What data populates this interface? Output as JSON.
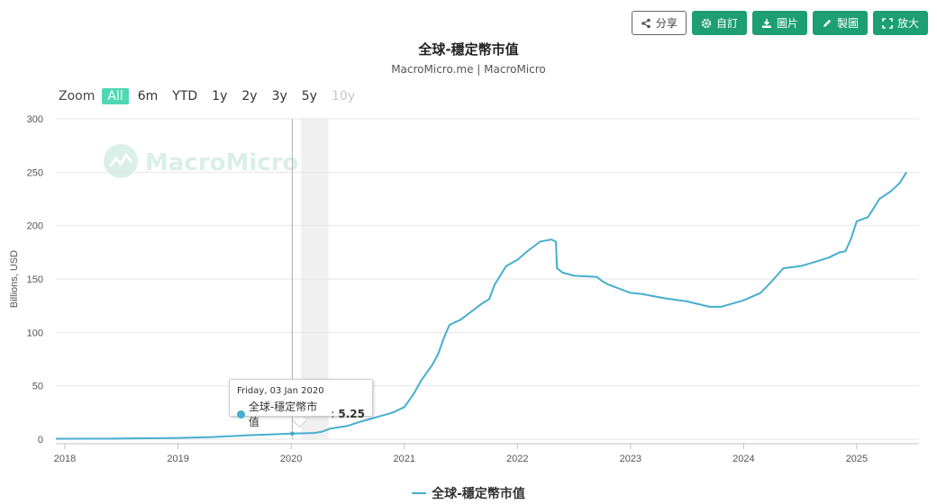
{
  "toolbar": {
    "share_label": "分享",
    "custom_label": "自訂",
    "image_label": "圖片",
    "draw_label": "製圖",
    "expand_label": "放大"
  },
  "zoom": {
    "label": "Zoom",
    "options": [
      "All",
      "6m",
      "YTD",
      "1y",
      "2y",
      "3y",
      "5y",
      "10y"
    ],
    "selected": "All",
    "disabled": [
      "10y"
    ]
  },
  "watermark": "MacroMicro",
  "tooltip": {
    "date": "Friday, 03 Jan 2020",
    "series": "全球-穩定幣市值",
    "value": "5.25"
  },
  "colors": {
    "series": "#46aece",
    "brand": "#1d9e73",
    "zoom_active": "#4fd8b4",
    "band": "#e6e6e6"
  },
  "chart_data": {
    "type": "line",
    "title": "全球-穩定幣市值",
    "subtitle": "MacroMicro.me | MacroMicro",
    "xlabel": "",
    "ylabel": "Billions, USD",
    "ylim": [
      0,
      300
    ],
    "yticks": [
      0,
      50,
      100,
      150,
      200,
      250,
      300
    ],
    "xticks": [
      "2018",
      "2019",
      "2020",
      "2021",
      "2022",
      "2023",
      "2024",
      "2025"
    ],
    "xlim": [
      2017.92,
      2025.55
    ],
    "grid": true,
    "legend": "bottom",
    "shaded_band": [
      2020.09,
      2020.33
    ],
    "crosshair_x": 2020.01,
    "series": [
      {
        "name": "全球-穩定幣市值",
        "x": [
          2017.92,
          2018.5,
          2019.0,
          2019.3,
          2019.6,
          2020.01,
          2020.2,
          2020.27,
          2020.35,
          2020.5,
          2020.6,
          2020.7,
          2020.8,
          2020.9,
          2021.0,
          2021.08,
          2021.15,
          2021.25,
          2021.3,
          2021.35,
          2021.4,
          2021.5,
          2021.6,
          2021.7,
          2021.75,
          2021.8,
          2021.9,
          2022.0,
          2022.1,
          2022.2,
          2022.25,
          2022.3,
          2022.34,
          2022.35,
          2022.4,
          2022.5,
          2022.7,
          2022.75,
          2022.8,
          2023.0,
          2023.1,
          2023.3,
          2023.5,
          2023.7,
          2023.8,
          2024.0,
          2024.15,
          2024.25,
          2024.35,
          2024.5,
          2024.6,
          2024.75,
          2024.85,
          2024.9,
          2024.95,
          2025.0,
          2025.1,
          2025.2,
          2025.3,
          2025.38,
          2025.44
        ],
        "values": [
          0.4,
          0.6,
          1.2,
          2.0,
          3.5,
          5.25,
          5.8,
          7.0,
          10.0,
          12.5,
          16.0,
          19.0,
          22.0,
          25.0,
          30.0,
          42.0,
          55.0,
          70.0,
          80.0,
          95.0,
          107.0,
          112.0,
          120.0,
          128.0,
          131.0,
          145.0,
          162.0,
          168.0,
          177.0,
          185.0,
          186.0,
          187.0,
          185.0,
          160.0,
          156.0,
          153.0,
          152.0,
          148.0,
          145.0,
          137.0,
          136.0,
          132.0,
          129.0,
          124.0,
          124.0,
          130.0,
          137.0,
          148.0,
          160.0,
          162.0,
          165.0,
          170.0,
          175.0,
          176.0,
          188.0,
          204.0,
          208.0,
          225.0,
          232.0,
          240.0,
          250.0
        ]
      }
    ]
  }
}
